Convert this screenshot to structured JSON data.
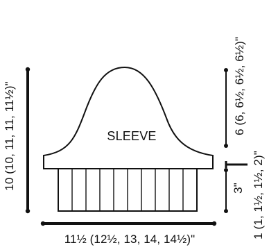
{
  "diagram": {
    "piece_label": "SLEEVE",
    "left_height_label": "10 (10, 11, 11, 11½)\"",
    "bottom_width_label": "11½ (12½, 13, 14, 14½)\"",
    "right_cap_label": "6 (6, 6½, 6½, 6½)\"",
    "right_middle_label": "1 (1, 1½, 1½, 2)\"",
    "right_cuff_label": "3\"",
    "line_color": "#111111",
    "background_color": "#ffffff"
  }
}
